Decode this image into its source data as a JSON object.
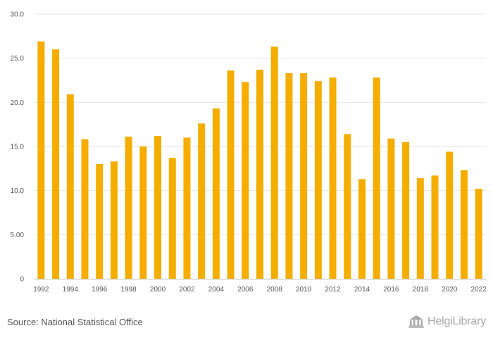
{
  "chart_data": {
    "type": "bar",
    "title": "",
    "xlabel": "",
    "ylabel": "",
    "categories": [
      "1992",
      "1993",
      "1994",
      "1995",
      "1996",
      "1997",
      "1998",
      "1999",
      "2000",
      "2001",
      "2002",
      "2003",
      "2004",
      "2005",
      "2006",
      "2007",
      "2008",
      "2009",
      "2010",
      "2011",
      "2012",
      "2013",
      "2014",
      "2015",
      "2016",
      "2017",
      "2018",
      "2019",
      "2020",
      "2021",
      "2022"
    ],
    "values": [
      26.9,
      26.0,
      20.9,
      15.8,
      13.0,
      13.3,
      16.1,
      15.0,
      16.2,
      13.7,
      16.0,
      17.6,
      19.3,
      23.6,
      22.3,
      23.7,
      26.3,
      23.3,
      23.3,
      22.4,
      22.8,
      16.4,
      11.3,
      22.8,
      15.9,
      15.5,
      11.4,
      11.7,
      14.4,
      12.3,
      10.2
    ],
    "x_tick_labels": [
      "1992",
      "1994",
      "1996",
      "1998",
      "2000",
      "2002",
      "2004",
      "2006",
      "2008",
      "2010",
      "2012",
      "2014",
      "2016",
      "2018",
      "2020",
      "2022"
    ],
    "y_tick_labels": [
      "0",
      "5.00",
      "10.0",
      "15.0",
      "20.0",
      "25.0",
      "30.0"
    ],
    "ylim": [
      0,
      30
    ],
    "grid": true,
    "bar_color": "#f5ad00"
  },
  "footer": {
    "source": "Source: National Statistical Office",
    "logo_text": "HelgiLibrary"
  }
}
